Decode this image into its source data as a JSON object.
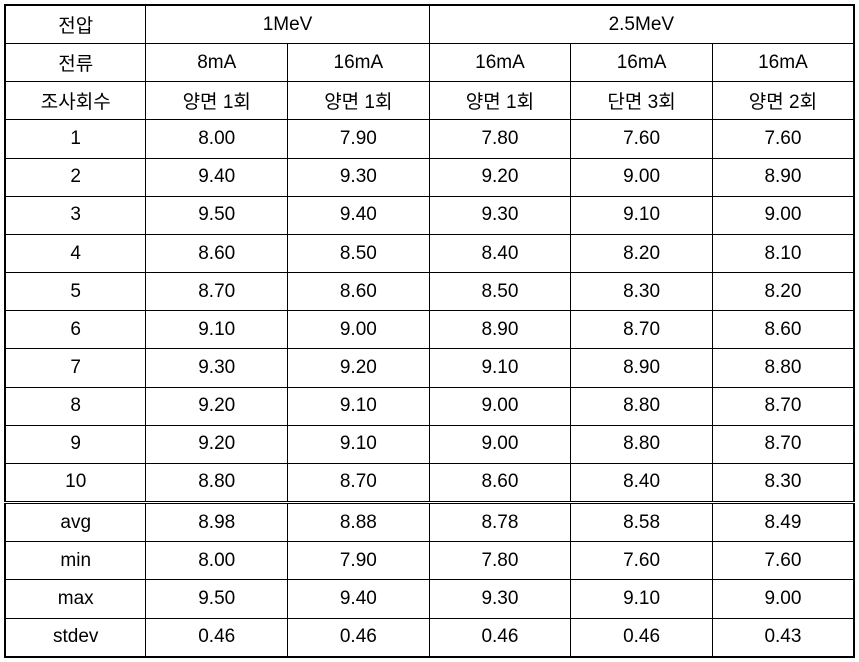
{
  "headers": {
    "voltage_label": "전압",
    "voltage_1": "1MeV",
    "voltage_2": "2.5MeV",
    "current_label": "전류",
    "current_c1": "8mA",
    "current_c2": "16mA",
    "current_c3": "16mA",
    "current_c4": "16mA",
    "current_c5": "16mA",
    "scan_label": "조사회수",
    "scan_c1": "양면 1회",
    "scan_c2": "양면 1회",
    "scan_c3": "양면 1회",
    "scan_c4": "단면 3회",
    "scan_c5": "양면 2회"
  },
  "rows": [
    {
      "label": "1",
      "c1": "8.00",
      "c2": "7.90",
      "c3": "7.80",
      "c4": "7.60",
      "c5": "7.60"
    },
    {
      "label": "2",
      "c1": "9.40",
      "c2": "9.30",
      "c3": "9.20",
      "c4": "9.00",
      "c5": "8.90"
    },
    {
      "label": "3",
      "c1": "9.50",
      "c2": "9.40",
      "c3": "9.30",
      "c4": "9.10",
      "c5": "9.00"
    },
    {
      "label": "4",
      "c1": "8.60",
      "c2": "8.50",
      "c3": "8.40",
      "c4": "8.20",
      "c5": "8.10"
    },
    {
      "label": "5",
      "c1": "8.70",
      "c2": "8.60",
      "c3": "8.50",
      "c4": "8.30",
      "c5": "8.20"
    },
    {
      "label": "6",
      "c1": "9.10",
      "c2": "9.00",
      "c3": "8.90",
      "c4": "8.70",
      "c5": "8.60"
    },
    {
      "label": "7",
      "c1": "9.30",
      "c2": "9.20",
      "c3": "9.10",
      "c4": "8.90",
      "c5": "8.80"
    },
    {
      "label": "8",
      "c1": "9.20",
      "c2": "9.10",
      "c3": "9.00",
      "c4": "8.80",
      "c5": "8.70"
    },
    {
      "label": "9",
      "c1": "9.20",
      "c2": "9.10",
      "c3": "9.00",
      "c4": "8.80",
      "c5": "8.70"
    },
    {
      "label": "10",
      "c1": "8.80",
      "c2": "8.70",
      "c3": "8.60",
      "c4": "8.40",
      "c5": "8.30"
    }
  ],
  "stats": [
    {
      "label": "avg",
      "c1": "8.98",
      "c2": "8.88",
      "c3": "8.78",
      "c4": "8.58",
      "c5": "8.49"
    },
    {
      "label": "min",
      "c1": "8.00",
      "c2": "7.90",
      "c3": "7.80",
      "c4": "7.60",
      "c5": "7.60"
    },
    {
      "label": "max",
      "c1": "9.50",
      "c2": "9.40",
      "c3": "9.30",
      "c4": "9.10",
      "c5": "9.00"
    },
    {
      "label": "stdev",
      "c1": "0.46",
      "c2": "0.46",
      "c3": "0.46",
      "c4": "0.46",
      "c5": "0.43"
    }
  ]
}
